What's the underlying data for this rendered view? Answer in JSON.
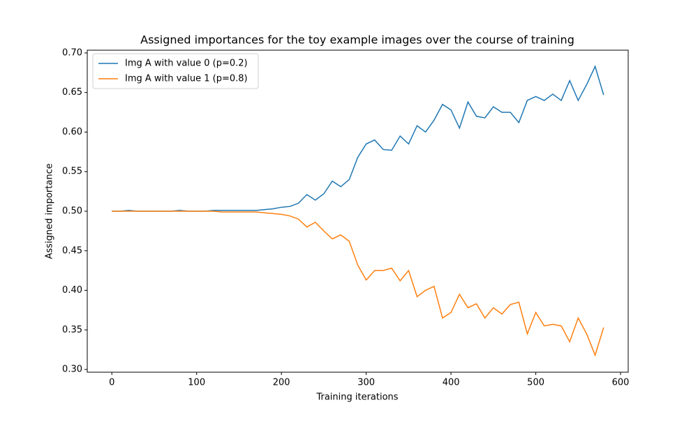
{
  "chart_data": {
    "type": "line",
    "title": "Assigned importances for the toy example images over the course of training",
    "x_label": "Training iterations",
    "y_label": "Assigned importance",
    "x": [
      0,
      10,
      20,
      30,
      40,
      50,
      60,
      70,
      80,
      90,
      100,
      110,
      120,
      130,
      140,
      150,
      160,
      170,
      180,
      190,
      200,
      210,
      220,
      230,
      240,
      250,
      260,
      270,
      280,
      290,
      300,
      310,
      320,
      330,
      340,
      350,
      360,
      370,
      380,
      390,
      400,
      410,
      420,
      430,
      440,
      450,
      460,
      470,
      480,
      490,
      500,
      510,
      520,
      530,
      540,
      550,
      560,
      570,
      580
    ],
    "series": [
      {
        "name": "Img A with value 0 (p=0.2)",
        "color": "#1f77b4",
        "values": [
          0.5,
          0.5,
          0.501,
          0.5,
          0.5,
          0.5,
          0.5,
          0.5,
          0.501,
          0.5,
          0.5,
          0.5,
          0.501,
          0.501,
          0.501,
          0.501,
          0.501,
          0.501,
          0.502,
          0.503,
          0.505,
          0.506,
          0.51,
          0.521,
          0.514,
          0.522,
          0.538,
          0.531,
          0.54,
          0.568,
          0.585,
          0.59,
          0.578,
          0.577,
          0.595,
          0.585,
          0.608,
          0.6,
          0.615,
          0.635,
          0.628,
          0.605,
          0.638,
          0.62,
          0.618,
          0.632,
          0.625,
          0.625,
          0.612,
          0.64,
          0.645,
          0.64,
          0.648,
          0.64,
          0.665,
          0.64,
          0.66,
          0.683,
          0.647
        ]
      },
      {
        "name": "Img A with value 1 (p=0.8)",
        "color": "#ff7f0e",
        "values": [
          0.5,
          0.5,
          0.5,
          0.5,
          0.5,
          0.5,
          0.5,
          0.5,
          0.5,
          0.5,
          0.5,
          0.5,
          0.5,
          0.499,
          0.499,
          0.499,
          0.499,
          0.499,
          0.498,
          0.497,
          0.496,
          0.494,
          0.49,
          0.48,
          0.486,
          0.475,
          0.465,
          0.47,
          0.462,
          0.432,
          0.413,
          0.425,
          0.425,
          0.428,
          0.412,
          0.425,
          0.392,
          0.4,
          0.405,
          0.365,
          0.372,
          0.395,
          0.378,
          0.383,
          0.365,
          0.378,
          0.37,
          0.382,
          0.385,
          0.345,
          0.372,
          0.355,
          0.357,
          0.355,
          0.335,
          0.365,
          0.345,
          0.318,
          0.353
        ]
      }
    ],
    "xlim": [
      -29,
      609
    ],
    "ylim": [
      0.2965,
      0.7035
    ],
    "xticks": [
      0,
      100,
      200,
      300,
      400,
      500,
      600
    ],
    "yticks": [
      {
        "value": 0.3,
        "label": "0.30"
      },
      {
        "value": 0.35,
        "label": "0.35"
      },
      {
        "value": 0.4,
        "label": "0.40"
      },
      {
        "value": 0.45,
        "label": "0.45"
      },
      {
        "value": 0.5,
        "label": "0.50"
      },
      {
        "value": 0.55,
        "label": "0.55"
      },
      {
        "value": 0.6,
        "label": "0.60"
      },
      {
        "value": 0.65,
        "label": "0.65"
      },
      {
        "value": 0.7,
        "label": "0.70"
      }
    ],
    "legend": "upper left",
    "grid": false
  }
}
